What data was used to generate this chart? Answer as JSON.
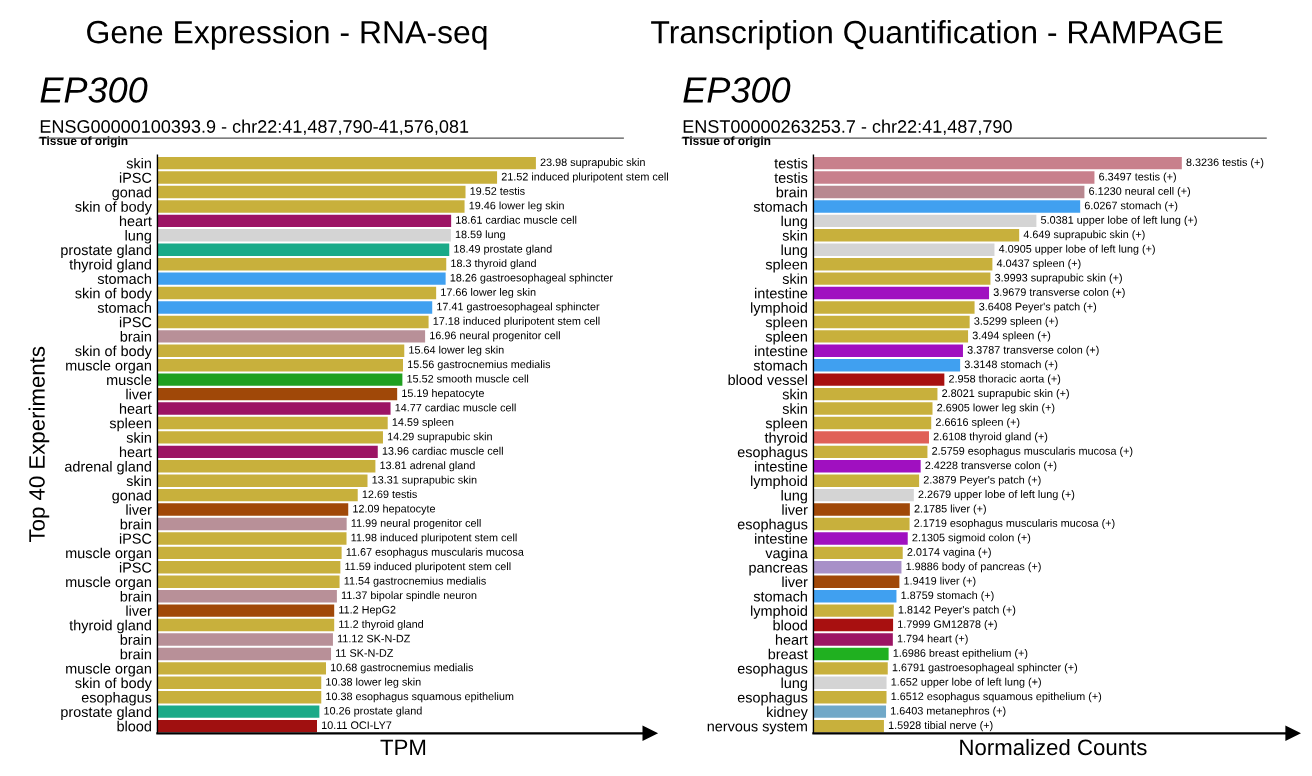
{
  "chart_data": [
    {
      "type": "bar",
      "orientation": "horizontal",
      "title": "Gene Expression - RNA-seq",
      "subtitle": "EP300",
      "xlabel": "TPM",
      "ylabel": "Top 40 Experiments",
      "tick_labels": "y",
      "grid": false,
      "legend": false,
      "annotations": [
        "ENSG00000100393.9 - chr22:41,487,790-41,576,081",
        "Tissue of origin"
      ],
      "categories": [
        "skin",
        "iPSC",
        "gonad",
        "skin of body",
        "heart",
        "lung",
        "prostate gland",
        "thyroid gland",
        "stomach",
        "skin of body",
        "stomach",
        "iPSC",
        "brain",
        "skin of body",
        "muscle organ",
        "muscle",
        "liver",
        "heart",
        "spleen",
        "skin",
        "heart",
        "adrenal gland",
        "skin",
        "gonad",
        "liver",
        "brain",
        "iPSC",
        "muscle organ",
        "iPSC",
        "muscle organ",
        "brain",
        "liver",
        "thyroid gland",
        "brain",
        "brain",
        "muscle organ",
        "skin of body",
        "esophagus",
        "prostate gland",
        "blood"
      ],
      "values": [
        23.98,
        21.52,
        19.52,
        19.46,
        18.61,
        18.59,
        18.49,
        18.3,
        18.26,
        17.66,
        17.41,
        17.18,
        16.96,
        15.64,
        15.56,
        15.52,
        15.19,
        14.77,
        14.59,
        14.29,
        13.96,
        13.81,
        13.31,
        12.69,
        12.09,
        11.99,
        11.98,
        11.67,
        11.59,
        11.54,
        11.37,
        11.2,
        11.2,
        11.12,
        11,
        10.68,
        10.38,
        10.38,
        10.26,
        10.11
      ],
      "value_labels": [
        "23.98 suprapubic skin",
        "21.52 induced pluripotent stem cell",
        "19.52 testis",
        "19.46 lower leg skin",
        "18.61 cardiac muscle cell",
        "18.59 lung",
        "18.49 prostate gland",
        "18.3 thyroid gland",
        "18.26 gastroesophageal sphincter",
        "17.66 lower leg skin",
        "17.41 gastroesophageal sphincter",
        "17.18 induced pluripotent stem cell",
        "16.96 neural progenitor cell",
        "15.64 lower leg skin",
        "15.56 gastrocnemius medialis",
        "15.52 smooth muscle cell",
        "15.19 hepatocyte",
        "14.77 cardiac muscle cell",
        "14.59 spleen",
        "14.29 suprapubic skin",
        "13.96 cardiac muscle cell",
        "13.81 adrenal gland",
        "13.31 suprapubic skin",
        "12.69 testis",
        "12.09 hepatocyte",
        "11.99 neural progenitor cell",
        "11.98 induced pluripotent stem cell",
        "11.67 esophagus muscularis mucosa",
        "11.59 induced pluripotent stem cell",
        "11.54 gastrocnemius medialis",
        "11.37 bipolar spindle neuron",
        "11.2 HepG2",
        "11.2 thyroid gland",
        "11.12 SK-N-DZ",
        "11 SK-N-DZ",
        "10.68 gastrocnemius medialis",
        "10.38 lower leg skin",
        "10.38 esophagus squamous epithelium",
        "10.26 prostate gland",
        "10.11 OCI-LY7"
      ],
      "colors": [
        "#c8b03c",
        "#c8b03c",
        "#c8b03c",
        "#c8b03c",
        "#9c1464",
        "#d4d4d4",
        "#1aaa88",
        "#c8b03c",
        "#40a0f0",
        "#c8b03c",
        "#40a0f0",
        "#c8b03c",
        "#b89098",
        "#c8b03c",
        "#c8b03c",
        "#20a020",
        "#a04808",
        "#9c1464",
        "#c8b03c",
        "#c8b03c",
        "#9c1464",
        "#c8b03c",
        "#c8b03c",
        "#c8b03c",
        "#a04808",
        "#b89098",
        "#c8b03c",
        "#c8b03c",
        "#c8b03c",
        "#c8b03c",
        "#b89098",
        "#a04808",
        "#c8b03c",
        "#b89098",
        "#b89098",
        "#c8b03c",
        "#c8b03c",
        "#c8b03c",
        "#1aaa88",
        "#a01010"
      ]
    },
    {
      "type": "bar",
      "orientation": "horizontal",
      "title": "Transcription Quantification - RAMPAGE",
      "subtitle": "EP300",
      "xlabel": "Normalized Counts",
      "tick_labels": "y",
      "grid": false,
      "legend": false,
      "annotations": [
        "ENST00000263253.7 - chr22:41,487,790",
        "Tissue of origin"
      ],
      "categories": [
        "testis",
        "testis",
        "brain",
        "stomach",
        "lung",
        "skin",
        "lung",
        "spleen",
        "skin",
        "intestine",
        "lymphoid",
        "spleen",
        "spleen",
        "intestine",
        "stomach",
        "blood vessel",
        "skin",
        "skin",
        "spleen",
        "thyroid",
        "esophagus",
        "intestine",
        "lymphoid",
        "lung",
        "liver",
        "esophagus",
        "intestine",
        "vagina",
        "pancreas",
        "liver",
        "stomach",
        "lymphoid",
        "blood",
        "heart",
        "breast",
        "esophagus",
        "lung",
        "esophagus",
        "kidney",
        "nervous system"
      ],
      "values": [
        8.3236,
        6.3497,
        6.123,
        6.0267,
        5.0381,
        4.649,
        4.0905,
        4.0437,
        3.9993,
        3.9679,
        3.6408,
        3.5299,
        3.494,
        3.3787,
        3.3148,
        2.958,
        2.8021,
        2.6905,
        2.6616,
        2.6108,
        2.5759,
        2.4228,
        2.3879,
        2.2679,
        2.1785,
        2.1719,
        2.1305,
        2.0174,
        1.9886,
        1.9419,
        1.8759,
        1.8142,
        1.7999,
        1.794,
        1.6986,
        1.6791,
        1.652,
        1.6512,
        1.6403,
        1.5928
      ],
      "value_labels": [
        "8.3236 testis (+)",
        "6.3497 testis (+)",
        "6.1230 neural cell (+)",
        "6.0267 stomach (+)",
        "5.0381 upper lobe of left lung (+)",
        "4.649 suprapubic skin (+)",
        "4.0905 upper lobe of left lung (+)",
        "4.0437 spleen (+)",
        "3.9993 suprapubic skin (+)",
        "3.9679 transverse colon (+)",
        "3.6408 Peyer's patch (+)",
        "3.5299 spleen (+)",
        "3.494 spleen (+)",
        "3.3787 transverse colon (+)",
        "3.3148 stomach (+)",
        "2.958 thoracic aorta (+)",
        "2.8021 suprapubic skin (+)",
        "2.6905 lower leg skin (+)",
        "2.6616 spleen (+)",
        "2.6108 thyroid gland (+)",
        "2.5759 esophagus muscularis mucosa (+)",
        "2.4228 transverse colon (+)",
        "2.3879 Peyer's patch (+)",
        "2.2679 upper lobe of left lung (+)",
        "2.1785 liver (+)",
        "2.1719 esophagus muscularis mucosa (+)",
        "2.1305 sigmoid colon (+)",
        "2.0174 vagina (+)",
        "1.9886 body of pancreas (+)",
        "1.9419 liver (+)",
        "1.8759 stomach (+)",
        "1.8142 Peyer's patch (+)",
        "1.7999 GM12878 (+)",
        "1.794 heart (+)",
        "1.6986 breast epithelium (+)",
        "1.6791 gastroesophageal sphincter (+)",
        "1.652 upper lobe of left lung (+)",
        "1.6512 esophagus squamous epithelium (+)",
        "1.6403 metanephros (+)",
        "1.5928 tibial nerve (+)"
      ],
      "colors": [
        "#c8808c",
        "#c8808c",
        "#b88890",
        "#40a0f0",
        "#d4d4d4",
        "#c8b03c",
        "#d4d4d4",
        "#c8b03c",
        "#c8b03c",
        "#a010c0",
        "#c8b03c",
        "#c8b03c",
        "#c8b03c",
        "#a010c0",
        "#40a0f0",
        "#a81010",
        "#c8b03c",
        "#c8b03c",
        "#c8b03c",
        "#e06058",
        "#c8b03c",
        "#a010c0",
        "#c8b03c",
        "#d4d4d4",
        "#a04808",
        "#c8b03c",
        "#a010c0",
        "#c8b03c",
        "#a890c8",
        "#a04808",
        "#40a0f0",
        "#c8b03c",
        "#a81010",
        "#9c1464",
        "#20b020",
        "#c8b03c",
        "#d4d4d4",
        "#c8b03c",
        "#70a8c8",
        "#c8b03c"
      ]
    }
  ]
}
